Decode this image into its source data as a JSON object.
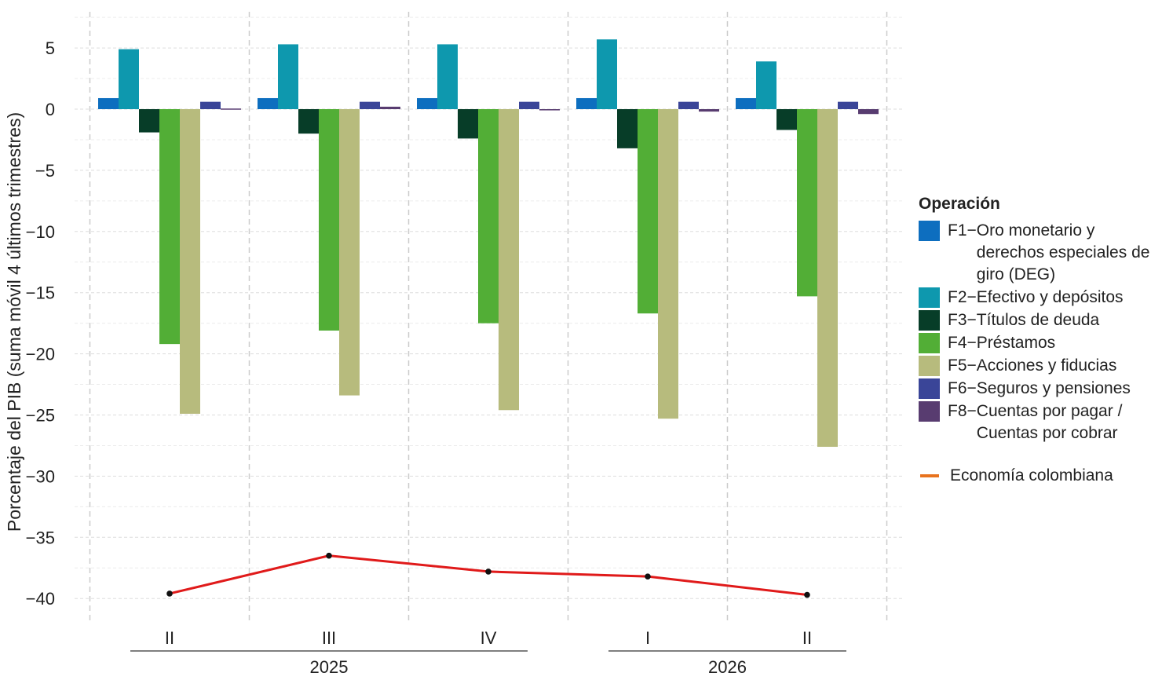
{
  "chart_data": {
    "type": "bar",
    "ylabel": "Porcentaje del PIB (suma móvil 4 últimos trimestres)",
    "xlabel": "",
    "ylim": [
      -41.5,
      7.8
    ],
    "yticks": [
      5,
      0,
      -5,
      -10,
      -15,
      -20,
      -25,
      -30,
      -35,
      -40
    ],
    "ytick_labels": [
      "5",
      "0",
      "-5",
      "-10",
      "-15",
      "-20",
      "-25",
      "-30",
      "-35",
      "-40"
    ],
    "categories": [
      "II",
      "III",
      "IV",
      "I",
      "II"
    ],
    "year_groups": [
      {
        "label": "2025",
        "quarters": [
          "II",
          "III",
          "IV"
        ]
      },
      {
        "label": "2026",
        "quarters": [
          "I",
          "II"
        ]
      }
    ],
    "series": [
      {
        "name": "F1−Oro monetario y derechos especiales de giro (DEG)",
        "code": "F1",
        "values": [
          0.9,
          0.9,
          0.9,
          0.9,
          0.9
        ],
        "color": "#0D6EBF"
      },
      {
        "name": "F2−Efectivo y depósitos",
        "code": "F2",
        "values": [
          4.9,
          5.3,
          5.3,
          5.7,
          3.9
        ],
        "color": "#0E98AE"
      },
      {
        "name": "F3−Títulos de deuda",
        "code": "F3",
        "values": [
          -1.9,
          -2.0,
          -2.4,
          -3.2,
          -1.7
        ],
        "color": "#073D28"
      },
      {
        "name": "F4−Préstamos",
        "code": "F4",
        "values": [
          -19.2,
          -18.1,
          -17.5,
          -16.7,
          -15.3
        ],
        "color": "#52AE36"
      },
      {
        "name": "F5−Acciones y fiducias",
        "code": "F5",
        "values": [
          -24.9,
          -23.4,
          -24.6,
          -25.3,
          -27.6
        ],
        "color": "#B7BB7D"
      },
      {
        "name": "F6−Seguros y pensiones",
        "code": "F6",
        "values": [
          0.6,
          0.6,
          0.6,
          0.6,
          0.6
        ],
        "color": "#3A4598"
      },
      {
        "name": "F8−Cuentas por pagar / Cuentas por cobrar",
        "code": "F8",
        "values": [
          0.05,
          0.2,
          -0.1,
          -0.2,
          -0.4
        ],
        "color": "#583C70"
      }
    ],
    "line_series": {
      "name": "Economía colombiana",
      "values": [
        -39.6,
        -36.5,
        -37.8,
        -38.2,
        -39.7
      ],
      "color": "#E01A1A",
      "legend_color": "#E8731E"
    },
    "grid": true,
    "legend_title": "Operación",
    "legend_placement": "right"
  },
  "legend": {
    "title": "Operación",
    "items": [
      {
        "code": "F1−",
        "label": "Oro monetario y derechos especiales de giro (DEG)",
        "color": "#0D6EBF"
      },
      {
        "code": "F2−",
        "label": "Efectivo y depósitos",
        "color": "#0E98AE"
      },
      {
        "code": "F3−",
        "label": "Títulos de deuda",
        "color": "#073D28"
      },
      {
        "code": "F4−",
        "label": "Préstamos",
        "color": "#52AE36"
      },
      {
        "code": "F5−",
        "label": "Acciones y fiducias",
        "color": "#B7BB7D"
      },
      {
        "code": "F6−",
        "label": "Seguros y pensiones",
        "color": "#3A4598"
      },
      {
        "code": "F8−",
        "label": "Cuentas por pagar / Cuentas por cobrar",
        "color": "#583C70"
      }
    ],
    "line_label": "Economía colombiana",
    "line_color": "#E8731E"
  }
}
